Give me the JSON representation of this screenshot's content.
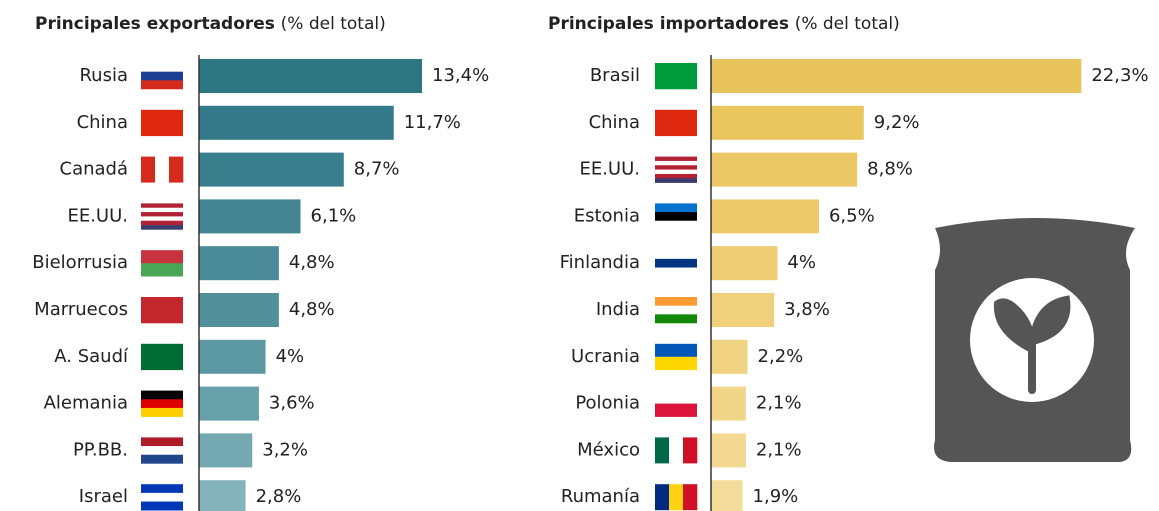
{
  "chart_data": [
    {
      "type": "barh",
      "title": "Principales exportadores",
      "subtitle": "(% del total)",
      "categories": [
        "Rusia",
        "China",
        "Canadá",
        "EE.UU.",
        "Bielorrusia",
        "Marruecos",
        "A. Saudí",
        "Alemania",
        "PP.BB.",
        "Israel"
      ],
      "values": [
        13.4,
        11.7,
        8.7,
        6.1,
        4.8,
        4.8,
        4,
        3.6,
        3.2,
        2.8
      ],
      "value_labels": [
        "13,4%",
        "11,7%",
        "8,7%",
        "6,1%",
        "4,8%",
        "4,8%",
        "4%",
        "3,6%",
        "3,2%",
        "2,8%"
      ],
      "colors": [
        "#2f7683",
        "#33798a",
        "#3a7f8d",
        "#438592",
        "#4b8b97",
        "#52909b",
        "#5c98a2",
        "#66a0a9",
        "#74a9b2",
        "#85b3bb"
      ],
      "xlim": [
        0,
        14
      ]
    },
    {
      "type": "barh",
      "title": "Principales importadores",
      "subtitle": "(% del total)",
      "categories": [
        "Brasil",
        "China",
        "EE.UU.",
        "Estonia",
        "Finlandia",
        "India",
        "Ucrania",
        "Polonia",
        "México",
        "Rumanía"
      ],
      "values": [
        22.3,
        9.2,
        8.8,
        6.5,
        4,
        3.8,
        2.2,
        2.1,
        2.1,
        1.9
      ],
      "value_labels": [
        "22,3%",
        "9,2%",
        "8,8%",
        "6,5%",
        "4%",
        "3,8%",
        "2,2%",
        "2,1%",
        "2,1%",
        "1,9%"
      ],
      "colors": [
        "#e8c25a",
        "#eac65f",
        "#ebc865",
        "#ecca6c",
        "#eecd74",
        "#efd07b",
        "#f0d383",
        "#f1d68a",
        "#f2d891",
        "#f3db99"
      ],
      "xlim": [
        0,
        23
      ]
    }
  ]
}
